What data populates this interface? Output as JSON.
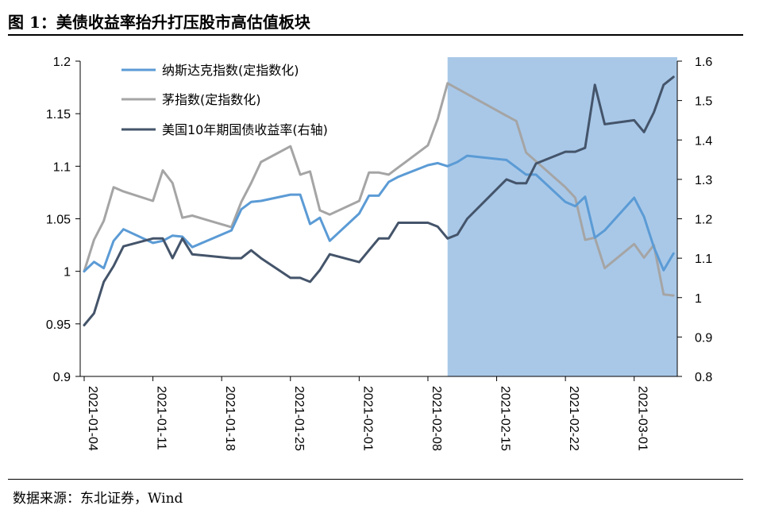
{
  "figure": {
    "title": "图 1：美债收益率抬升打压股市高估值板块",
    "source": "数据来源：东北证券，Wind"
  },
  "chart_data": {
    "type": "line",
    "x_ticks": [
      "2021-01-04",
      "2021-01-11",
      "2021-01-18",
      "2021-01-25",
      "2021-02-01",
      "2021-02-08",
      "2021-02-15",
      "2021-02-22",
      "2021-03-01"
    ],
    "y_left": {
      "range": [
        0.9,
        1.2
      ],
      "ticks": [
        "0.9",
        "0.95",
        "1",
        "1.05",
        "1.1",
        "1.15",
        "1.2"
      ]
    },
    "y_right": {
      "range": [
        0.8,
        1.6
      ],
      "ticks": [
        "0.8",
        "0.9",
        "1",
        "1.1",
        "1.2",
        "1.3",
        "1.4",
        "1.5",
        "1.6"
      ]
    },
    "highlight": {
      "from": "2021-02-10",
      "to": "2021-03-10",
      "color": "#a9c8e8"
    },
    "legend_position": "top-left",
    "series": [
      {
        "name": "纳斯达克指数(定指数化)",
        "axis": "left",
        "color": "#5b9bd5",
        "points": [
          [
            "2021-01-04",
            1.0
          ],
          [
            "2021-01-05",
            1.009
          ],
          [
            "2021-01-06",
            1.003
          ],
          [
            "2021-01-07",
            1.029
          ],
          [
            "2021-01-08",
            1.04
          ],
          [
            "2021-01-11",
            1.027
          ],
          [
            "2021-01-12",
            1.029
          ],
          [
            "2021-01-13",
            1.034
          ],
          [
            "2021-01-14",
            1.033
          ],
          [
            "2021-01-15",
            1.023
          ],
          [
            "2021-01-19",
            1.039
          ],
          [
            "2021-01-20",
            1.059
          ],
          [
            "2021-01-21",
            1.066
          ],
          [
            "2021-01-22",
            1.067
          ],
          [
            "2021-01-25",
            1.073
          ],
          [
            "2021-01-26",
            1.073
          ],
          [
            "2021-01-27",
            1.045
          ],
          [
            "2021-01-28",
            1.051
          ],
          [
            "2021-01-29",
            1.029
          ],
          [
            "2021-02-01",
            1.055
          ],
          [
            "2021-02-02",
            1.072
          ],
          [
            "2021-02-03",
            1.072
          ],
          [
            "2021-02-04",
            1.085
          ],
          [
            "2021-02-05",
            1.09
          ],
          [
            "2021-02-08",
            1.101
          ],
          [
            "2021-02-09",
            1.103
          ],
          [
            "2021-02-10",
            1.1
          ],
          [
            "2021-02-11",
            1.104
          ],
          [
            "2021-02-12",
            1.11
          ],
          [
            "2021-02-16",
            1.106
          ],
          [
            "2021-02-17",
            1.099
          ],
          [
            "2021-02-18",
            1.092
          ],
          [
            "2021-02-19",
            1.092
          ],
          [
            "2021-02-22",
            1.066
          ],
          [
            "2021-02-23",
            1.062
          ],
          [
            "2021-02-24",
            1.071
          ],
          [
            "2021-02-25",
            1.032
          ],
          [
            "2021-02-26",
            1.039
          ],
          [
            "2021-03-01",
            1.07
          ],
          [
            "2021-03-02",
            1.052
          ],
          [
            "2021-03-03",
            1.023
          ],
          [
            "2021-03-04",
            1.001
          ],
          [
            "2021-03-05",
            1.017
          ]
        ]
      },
      {
        "name": "茅指数(定指数化)",
        "axis": "left",
        "color": "#a5a5a5",
        "points": [
          [
            "2021-01-04",
            1.0
          ],
          [
            "2021-01-05",
            1.03
          ],
          [
            "2021-01-06",
            1.048
          ],
          [
            "2021-01-07",
            1.08
          ],
          [
            "2021-01-08",
            1.076
          ],
          [
            "2021-01-11",
            1.067
          ],
          [
            "2021-01-12",
            1.096
          ],
          [
            "2021-01-13",
            1.084
          ],
          [
            "2021-01-14",
            1.051
          ],
          [
            "2021-01-15",
            1.053
          ],
          [
            "2021-01-19",
            1.042
          ],
          [
            "2021-01-20",
            1.066
          ],
          [
            "2021-01-21",
            1.084
          ],
          [
            "2021-01-22",
            1.104
          ],
          [
            "2021-01-25",
            1.119
          ],
          [
            "2021-01-26",
            1.092
          ],
          [
            "2021-01-27",
            1.095
          ],
          [
            "2021-01-28",
            1.058
          ],
          [
            "2021-01-29",
            1.054
          ],
          [
            "2021-02-01",
            1.067
          ],
          [
            "2021-02-02",
            1.094
          ],
          [
            "2021-02-03",
            1.094
          ],
          [
            "2021-02-04",
            1.092
          ],
          [
            "2021-02-05",
            1.099
          ],
          [
            "2021-02-08",
            1.12
          ],
          [
            "2021-02-09",
            1.145
          ],
          [
            "2021-02-10",
            1.179
          ],
          [
            "2021-02-16",
            1.148
          ],
          [
            "2021-02-17",
            1.143
          ],
          [
            "2021-02-18",
            1.113
          ],
          [
            "2021-02-22",
            1.08
          ],
          [
            "2021-02-23",
            1.07
          ],
          [
            "2021-02-24",
            1.03
          ],
          [
            "2021-02-25",
            1.032
          ],
          [
            "2021-02-26",
            1.003
          ],
          [
            "2021-03-01",
            1.026
          ],
          [
            "2021-03-02",
            1.013
          ],
          [
            "2021-03-03",
            1.025
          ],
          [
            "2021-03-04",
            0.978
          ],
          [
            "2021-03-05",
            0.977
          ]
        ]
      },
      {
        "name": "美国10年期国债收益率(右轴)",
        "axis": "right",
        "color": "#44546a",
        "points": [
          [
            "2021-01-04",
            0.93
          ],
          [
            "2021-01-05",
            0.96
          ],
          [
            "2021-01-06",
            1.04
          ],
          [
            "2021-01-07",
            1.08
          ],
          [
            "2021-01-08",
            1.13
          ],
          [
            "2021-01-11",
            1.15
          ],
          [
            "2021-01-12",
            1.15
          ],
          [
            "2021-01-13",
            1.1
          ],
          [
            "2021-01-14",
            1.15
          ],
          [
            "2021-01-15",
            1.11
          ],
          [
            "2021-01-19",
            1.1
          ],
          [
            "2021-01-20",
            1.1
          ],
          [
            "2021-01-21",
            1.12
          ],
          [
            "2021-01-22",
            1.1
          ],
          [
            "2021-01-25",
            1.05
          ],
          [
            "2021-01-26",
            1.05
          ],
          [
            "2021-01-27",
            1.04
          ],
          [
            "2021-01-28",
            1.07
          ],
          [
            "2021-01-29",
            1.11
          ],
          [
            "2021-02-01",
            1.09
          ],
          [
            "2021-02-02",
            1.12
          ],
          [
            "2021-02-03",
            1.15
          ],
          [
            "2021-02-04",
            1.15
          ],
          [
            "2021-02-05",
            1.19
          ],
          [
            "2021-02-08",
            1.19
          ],
          [
            "2021-02-09",
            1.18
          ],
          [
            "2021-02-10",
            1.15
          ],
          [
            "2021-02-11",
            1.16
          ],
          [
            "2021-02-12",
            1.2
          ],
          [
            "2021-02-16",
            1.3
          ],
          [
            "2021-02-17",
            1.29
          ],
          [
            "2021-02-18",
            1.29
          ],
          [
            "2021-02-19",
            1.34
          ],
          [
            "2021-02-22",
            1.37
          ],
          [
            "2021-02-23",
            1.37
          ],
          [
            "2021-02-24",
            1.38
          ],
          [
            "2021-02-25",
            1.54
          ],
          [
            "2021-02-26",
            1.44
          ],
          [
            "2021-03-01",
            1.45
          ],
          [
            "2021-03-02",
            1.42
          ],
          [
            "2021-03-03",
            1.47
          ],
          [
            "2021-03-04",
            1.54
          ],
          [
            "2021-03-05",
            1.56
          ]
        ]
      }
    ]
  }
}
